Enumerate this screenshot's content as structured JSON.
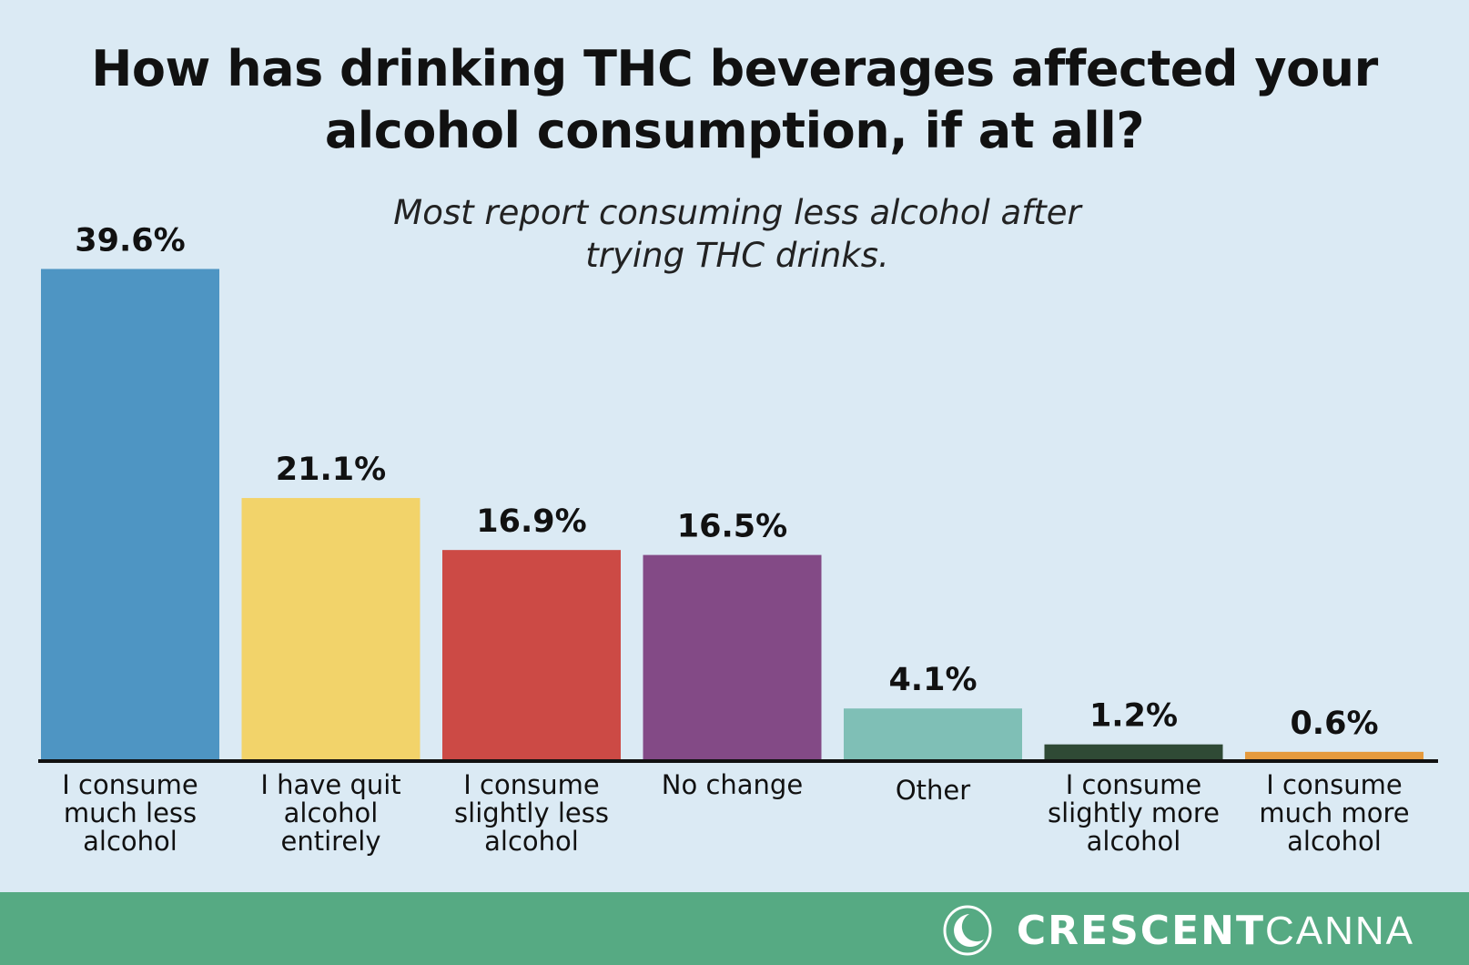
{
  "chart_data": {
    "type": "bar",
    "title": "How has drinking THC beverages affected your alcohol consumption, if at all?",
    "subtitle": "Most report consuming less alcohol after trying THC drinks.",
    "categories": [
      "I consume much less alcohol",
      "I have quit alcohol entirely",
      "I consume slightly less alcohol",
      "No change",
      "Other",
      "I consume slightly more alcohol",
      "I consume much more alcohol"
    ],
    "values": [
      39.6,
      21.1,
      16.9,
      16.5,
      4.1,
      1.2,
      0.6
    ],
    "data_labels": [
      "39.6%",
      "21.1%",
      "16.9%",
      "16.5%",
      "4.1%",
      "1.2%",
      "0.6%"
    ],
    "colors": [
      "#4e95c3",
      "#f2d36a",
      "#cc4a45",
      "#834a86",
      "#7fbfb6",
      "#2f4a35",
      "#e59a3d"
    ],
    "xlabel": "",
    "ylabel": "",
    "ylim": [
      0,
      40
    ],
    "grid": false,
    "legend": "none"
  },
  "footer": {
    "brand_bold": "CRESCENT",
    "brand_light": "CANNA",
    "logo_icon": "crescent-moon-icon",
    "color": "#56aa83"
  }
}
